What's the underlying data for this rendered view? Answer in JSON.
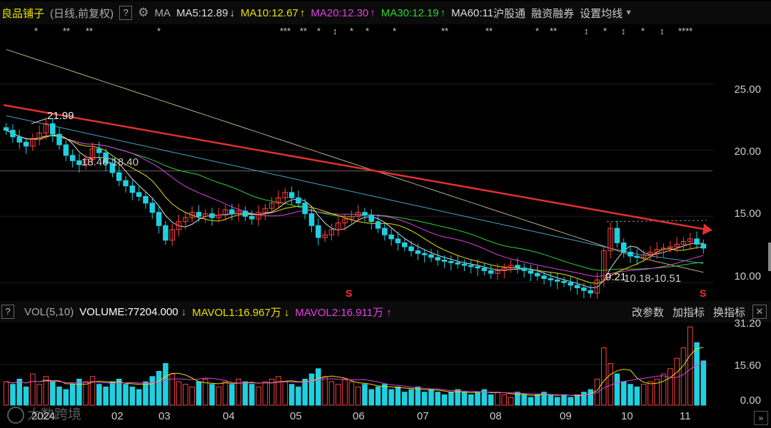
{
  "header": {
    "stock_name": "良品铺子",
    "mode": "(日线,前复权)",
    "help": "?",
    "ma_label": "MA",
    "ma5": "MA5:12.89",
    "ma10": "MA10:12.67",
    "ma20": "MA20:12.30",
    "ma30": "MA30:12.19",
    "ma60": "MA60:11",
    "hgt": "沪股通",
    "rzrq": "融资融券",
    "set_ma": "设置均线",
    "down_arrow": "↓",
    "up_arrow": "↑",
    "gear_icon": "gear-icon",
    "dropdown_icon": "chevron-down-icon"
  },
  "colors": {
    "ma5": "#dddddd",
    "ma10": "#e8e000",
    "ma20": "#e040e0",
    "ma30": "#30d030",
    "ma60": "#40a0c0",
    "up": "#ff4040",
    "down": "#20d0e0",
    "trend": "#e03030",
    "stock_name": "#e8e000"
  },
  "annotations": {
    "high_label": "21.99",
    "range1": "18.46-18.40",
    "low_label": "9.21",
    "range2": "10.18-10.51",
    "s_marker": "S",
    "watermark": "大数跨境"
  },
  "vol_header": {
    "help": "?",
    "vol_label": "VOL(5,10)",
    "volume": "VOLUME:77204.000",
    "vol_arrow": "↓",
    "mavol1": "MAVOL1:16.967万",
    "mavol1_arrow": "↓",
    "mavol2": "MAVOL2:16.911万",
    "mavol2_arrow": "↑",
    "btn_params": "改参数",
    "btn_add": "加指标",
    "btn_switch": "换指标",
    "close_icon": "close-icon"
  },
  "chart_data": [
    {
      "type": "candlestick",
      "y_ticks": [
        "25.00",
        "20.00",
        "15.00",
        "10.00"
      ],
      "ylim": [
        8.5,
        29.5
      ],
      "x_labels": [
        "2024",
        "02",
        "03",
        "04",
        "05",
        "06",
        "07",
        "08",
        "09",
        "10",
        "11"
      ],
      "high": 21.99,
      "low": 9.21,
      "close_series": [
        21.5,
        21.0,
        20.6,
        20.3,
        20.8,
        21.3,
        21.99,
        21.2,
        20.4,
        19.6,
        19.2,
        18.9,
        19.3,
        20.1,
        19.8,
        19.0,
        18.3,
        17.7,
        17.3,
        16.8,
        16.5,
        16.0,
        15.3,
        14.3,
        13.2,
        14.0,
        14.6,
        14.9,
        15.3,
        15.0,
        15.2,
        14.9,
        15.1,
        15.5,
        15.2,
        15.4,
        15.0,
        14.8,
        15.3,
        15.6,
        16.0,
        16.4,
        16.8,
        16.4,
        16.0,
        15.2,
        14.3,
        13.4,
        13.6,
        14.0,
        14.5,
        14.8,
        15.0,
        15.3,
        15.1,
        14.6,
        14.1,
        13.6,
        13.3,
        13.0,
        12.7,
        12.4,
        12.2,
        12.1,
        11.9,
        11.7,
        11.6,
        11.5,
        11.4,
        11.3,
        11.2,
        11.1,
        10.9,
        10.7,
        10.9,
        11.1,
        11.3,
        11.1,
        10.9,
        10.7,
        10.5,
        10.3,
        10.2,
        10.1,
        10.0,
        9.8,
        9.6,
        9.4,
        9.21,
        10.2,
        12.4,
        14.1,
        13.0,
        12.3,
        12.0,
        11.9,
        12.1,
        12.3,
        12.5,
        12.6,
        12.7,
        12.9,
        13.1,
        13.3,
        12.9,
        12.6
      ]
    },
    {
      "type": "bar",
      "name": "VOL",
      "y_ticks": [
        "31.20",
        "15.60",
        "0.00"
      ],
      "ylim": [
        0,
        31.2
      ],
      "values": [
        9,
        8,
        10,
        7,
        12,
        8,
        11,
        9,
        7,
        6,
        8,
        10,
        9,
        11,
        8,
        7,
        9,
        10,
        8,
        7,
        6,
        9,
        11,
        13,
        16,
        12,
        9,
        8,
        7,
        9,
        10,
        8,
        7,
        9,
        8,
        10,
        9,
        8,
        7,
        9,
        10,
        11,
        9,
        8,
        7,
        10,
        12,
        14,
        11,
        9,
        8,
        10,
        9,
        7,
        8,
        6,
        7,
        8,
        6,
        7,
        5,
        6,
        7,
        5,
        6,
        5,
        4,
        5,
        6,
        5,
        4,
        5,
        6,
        4,
        5,
        4,
        3,
        5,
        4,
        3,
        4,
        5,
        4,
        3,
        4,
        3,
        4,
        5,
        6,
        10,
        22,
        16,
        12,
        9,
        8,
        7,
        8,
        9,
        10,
        12,
        14,
        18,
        22,
        30,
        24,
        17
      ]
    }
  ]
}
